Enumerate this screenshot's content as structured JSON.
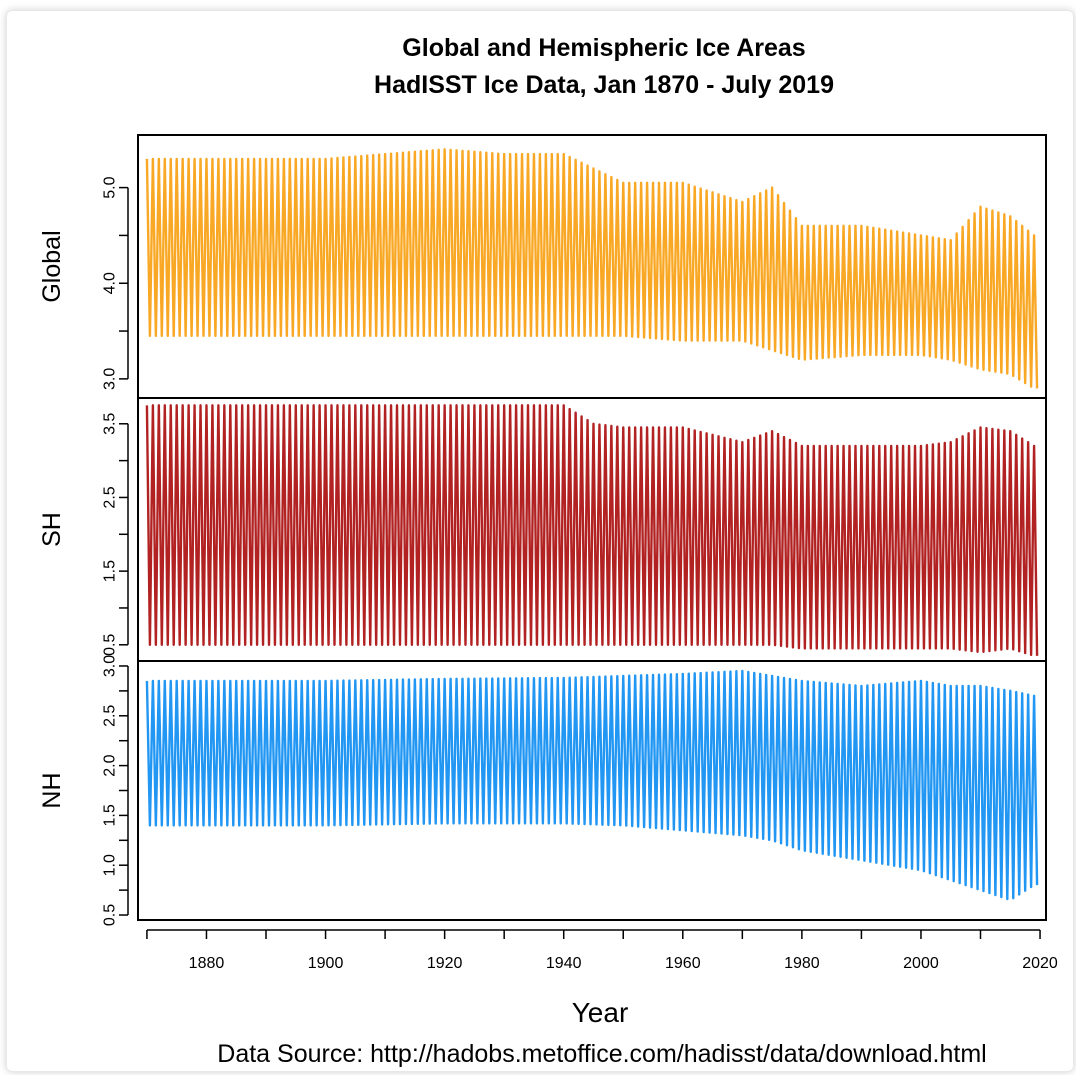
{
  "title_line1": "Global and Hemispheric Ice Areas",
  "title_line2": "HadISST Ice Data, Jan 1870 - July 2019",
  "xlabel": "Year",
  "source": "Data Source: http://hadobs.metoffice.com/hadisst/data/download.html",
  "chart_data": {
    "type": "line",
    "title": "Global and Hemispheric Ice Areas HadISST Ice Data, Jan 1870 - July 2019",
    "xlabel": "Year",
    "xlim": [
      1868.5,
      2021
    ],
    "x_ticks": [
      1880,
      1900,
      1920,
      1940,
      1960,
      1980,
      2000,
      2020
    ],
    "x_tick_labels": [
      "1880",
      "1900",
      "1920",
      "1940",
      "1960",
      "1980",
      "2000",
      "2020"
    ],
    "panels": [
      {
        "name": "Global",
        "ylabel": "Global",
        "color": "#f9a825",
        "ylim": [
          2.8,
          5.55
        ],
        "y_ticks": [
          3.0,
          4.0,
          5.0
        ],
        "y_tick_labels": [
          "3.0",
          "4.0",
          "5.0"
        ],
        "envelope_years": [
          1870,
          1900,
          1910,
          1920,
          1930,
          1940,
          1950,
          1960,
          1970,
          1975,
          1980,
          1990,
          2000,
          2005,
          2010,
          2015,
          2019
        ],
        "envelope_max": [
          5.3,
          5.3,
          5.35,
          5.4,
          5.35,
          5.35,
          5.05,
          5.05,
          4.85,
          5.0,
          4.6,
          4.6,
          4.5,
          4.45,
          4.8,
          4.7,
          4.5
        ],
        "envelope_min": [
          3.45,
          3.45,
          3.45,
          3.45,
          3.45,
          3.45,
          3.45,
          3.4,
          3.4,
          3.3,
          3.2,
          3.25,
          3.25,
          3.2,
          3.1,
          3.05,
          2.9
        ]
      },
      {
        "name": "SH",
        "ylabel": "SH",
        "color": "#b22222",
        "ylim": [
          0.28,
          3.85
        ],
        "y_ticks": [
          0.5,
          1.5,
          2.5,
          3.5
        ],
        "y_tick_labels": [
          "0.5",
          "1.5",
          "2.5",
          "3.5"
        ],
        "envelope_years": [
          1870,
          1900,
          1920,
          1940,
          1945,
          1950,
          1960,
          1970,
          1975,
          1980,
          1990,
          2000,
          2005,
          2010,
          2015,
          2019
        ],
        "envelope_max": [
          3.75,
          3.75,
          3.75,
          3.75,
          3.5,
          3.45,
          3.45,
          3.25,
          3.4,
          3.2,
          3.2,
          3.2,
          3.25,
          3.45,
          3.4,
          3.2
        ],
        "envelope_min": [
          0.5,
          0.5,
          0.5,
          0.5,
          0.5,
          0.5,
          0.5,
          0.5,
          0.5,
          0.45,
          0.45,
          0.45,
          0.45,
          0.4,
          0.45,
          0.35
        ]
      },
      {
        "name": "NH",
        "ylabel": "NH",
        "color": "#2196f3",
        "ylim": [
          0.45,
          3.05
        ],
        "y_ticks": [
          0.5,
          1.0,
          1.5,
          2.0,
          2.5,
          3.0
        ],
        "y_tick_labels": [
          "0.5",
          "1.0",
          "1.5",
          "2.0",
          "2.5",
          "3.0"
        ],
        "envelope_years": [
          1870,
          1900,
          1920,
          1940,
          1950,
          1960,
          1970,
          1975,
          1980,
          1990,
          2000,
          2005,
          2010,
          2015,
          2019
        ],
        "envelope_max": [
          2.85,
          2.85,
          2.87,
          2.88,
          2.9,
          2.92,
          2.95,
          2.9,
          2.85,
          2.8,
          2.85,
          2.8,
          2.8,
          2.75,
          2.7
        ],
        "envelope_min": [
          1.4,
          1.4,
          1.42,
          1.42,
          1.4,
          1.35,
          1.3,
          1.25,
          1.15,
          1.05,
          0.95,
          0.85,
          0.75,
          0.65,
          0.8
        ]
      }
    ]
  }
}
